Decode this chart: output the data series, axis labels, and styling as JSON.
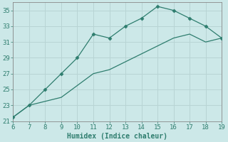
{
  "line1_x": [
    6,
    7,
    8,
    9,
    10,
    11,
    12,
    13,
    14,
    15,
    16,
    17,
    18,
    19
  ],
  "line1_y": [
    21.5,
    23.0,
    25.0,
    27.0,
    29.0,
    32.0,
    31.5,
    33.0,
    34.0,
    35.5,
    35.0,
    34.0,
    33.0,
    31.5
  ],
  "line2_x": [
    6,
    7,
    8,
    9,
    10,
    11,
    12,
    13,
    14,
    15,
    16,
    17,
    18,
    19
  ],
  "line2_y": [
    21.5,
    23.0,
    23.5,
    24.0,
    25.5,
    27.0,
    27.5,
    28.5,
    29.5,
    30.5,
    31.5,
    32.0,
    31.0,
    31.5
  ],
  "line_color": "#2e7d6e",
  "bg_color": "#cce8e8",
  "grid_color": "#b8d4d4",
  "xlabel": "Humidex (Indice chaleur)",
  "xlim": [
    6,
    19
  ],
  "ylim": [
    21,
    36
  ],
  "xticks": [
    6,
    7,
    8,
    9,
    10,
    11,
    12,
    13,
    14,
    15,
    16,
    17,
    18,
    19
  ],
  "yticks": [
    21,
    23,
    25,
    27,
    29,
    31,
    33,
    35
  ],
  "marker": "D",
  "markersize": 2.5,
  "linewidth": 0.9,
  "xlabel_fontsize": 7,
  "tick_fontsize": 6.5,
  "tick_color": "#2e7d6e"
}
